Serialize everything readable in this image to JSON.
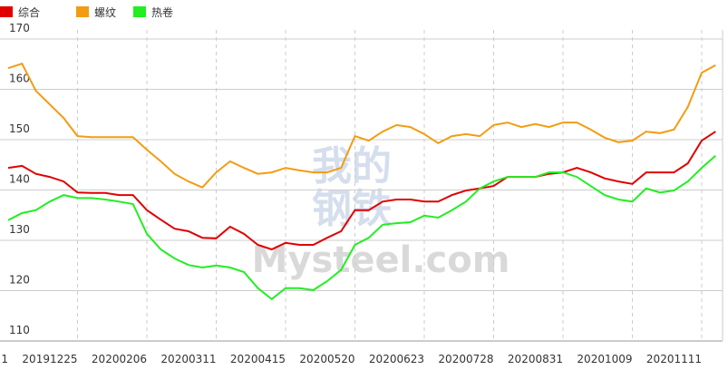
{
  "chart_data": {
    "type": "line",
    "categories": [
      "1",
      null,
      null,
      null,
      null,
      "20191225",
      null,
      null,
      null,
      null,
      "20200206",
      null,
      null,
      null,
      null,
      "20200311",
      null,
      null,
      null,
      null,
      "20200415",
      null,
      null,
      null,
      null,
      "20200520",
      null,
      null,
      null,
      null,
      "20200623",
      null,
      null,
      null,
      null,
      "20200728",
      null,
      null,
      null,
      null,
      "20200831",
      null,
      null,
      null,
      null,
      "20201009",
      null,
      null,
      null,
      null,
      "20201111",
      null
    ],
    "series": [
      {
        "name": "综合",
        "color": "#e00000",
        "values": [
          144.4,
          144.8,
          143.2,
          142.6,
          141.7,
          139.5,
          139.4,
          139.4,
          139,
          139,
          136,
          134.1,
          132.3,
          131.8,
          130.5,
          130.4,
          132.7,
          131.3,
          129.1,
          128.2,
          129.5,
          129.1,
          129.1,
          130.5,
          131.8,
          136,
          136,
          137.7,
          138.1,
          138.1,
          137.7,
          137.7,
          139,
          139.9,
          140.3,
          140.8,
          142.6,
          142.6,
          142.6,
          143.2,
          143.5,
          144.4,
          143.5,
          142.3,
          141.7,
          141.2,
          143.5,
          143.5,
          143.5,
          145.3,
          149.8,
          151.6
        ]
      },
      {
        "name": "螺纹",
        "color": "#f39c12",
        "values": [
          164.2,
          165.1,
          159.7,
          157,
          154.3,
          150.7,
          150.5,
          150.5,
          150.5,
          150.5,
          148,
          145.7,
          143.2,
          141.7,
          140.5,
          143.5,
          145.7,
          144.4,
          143.2,
          143.5,
          144.4,
          143.9,
          143.5,
          143.5,
          144.4,
          150.7,
          149.8,
          151.6,
          152.9,
          152.5,
          151.1,
          149.3,
          150.7,
          151.1,
          150.7,
          152.9,
          153.4,
          152.5,
          153.1,
          152.5,
          153.4,
          153.4,
          152,
          150.4,
          149.5,
          149.8,
          151.6,
          151.3,
          152,
          156.5,
          163.3,
          164.8
        ]
      },
      {
        "name": "热卷",
        "color": "#22ee22",
        "values": [
          134,
          135.4,
          136,
          137.7,
          139,
          138.4,
          138.4,
          138.1,
          137.7,
          137.2,
          131.3,
          128.2,
          126.4,
          125.1,
          124.6,
          125,
          124.6,
          123.7,
          120.5,
          118.3,
          120.5,
          120.5,
          120.1,
          121.9,
          124.1,
          129.1,
          130.5,
          133.1,
          133.4,
          133.6,
          134.9,
          134.5,
          136,
          137.7,
          140.3,
          141.7,
          142.6,
          142.6,
          142.6,
          143.5,
          143.5,
          142.6,
          140.8,
          139,
          138.1,
          137.7,
          140.3,
          139.5,
          139.9,
          141.7,
          144.4,
          146.8
        ]
      }
    ],
    "ylim": [
      110,
      170
    ],
    "yticks": [
      110,
      120,
      130,
      140,
      150,
      160,
      170
    ],
    "grid": true,
    "legend": "top-left",
    "watermark": [
      "我的",
      "钢铁",
      "Mysteel.com"
    ]
  }
}
